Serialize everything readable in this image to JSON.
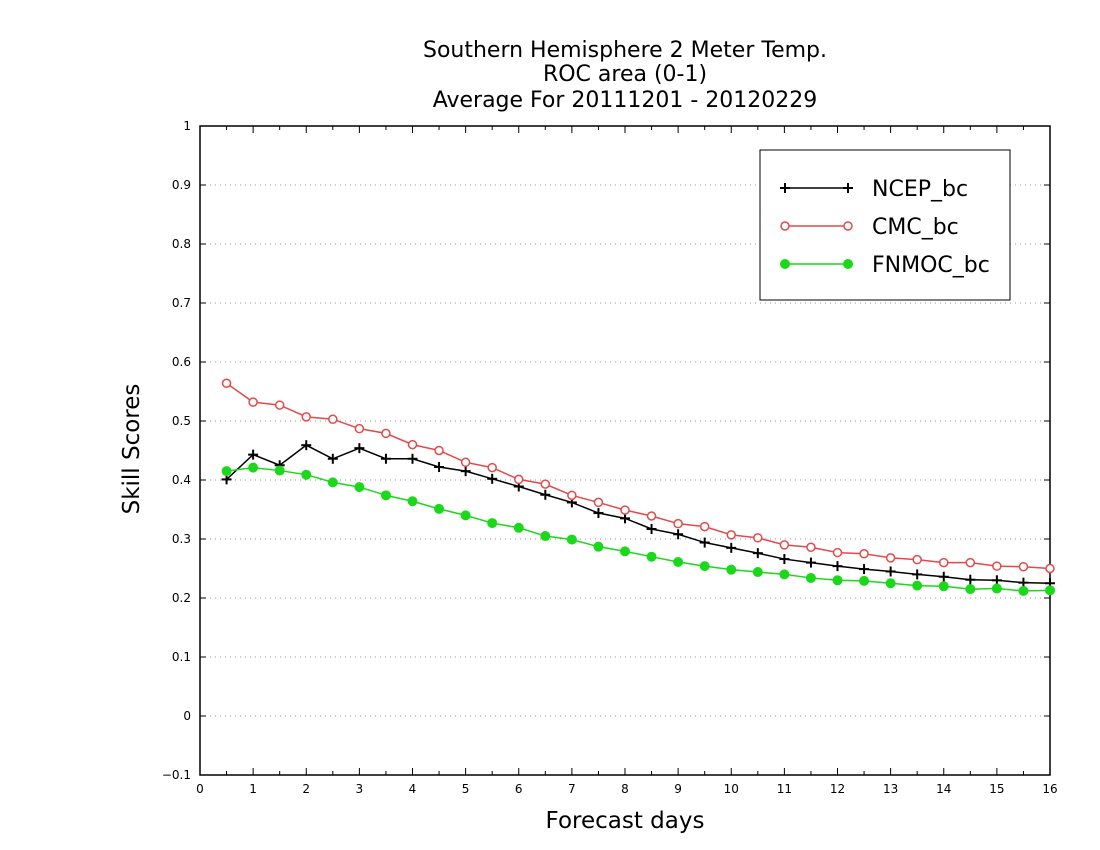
{
  "chart_data": {
    "type": "line",
    "title": [
      "Southern Hemisphere 2 Meter Temp.",
      "ROC area (0-1)",
      "Average For 20111201 - 20120229"
    ],
    "xlabel": "Forecast days",
    "ylabel": "Skill Scores",
    "xlim": [
      0,
      16
    ],
    "ylim": [
      -0.1,
      1
    ],
    "xticks": [
      0,
      1,
      2,
      3,
      4,
      5,
      6,
      7,
      8,
      9,
      10,
      11,
      12,
      13,
      14,
      15,
      16
    ],
    "yticks": [
      -0.1,
      0,
      0.1,
      0.2,
      0.3,
      0.4,
      0.5,
      0.6,
      0.7,
      0.8,
      0.9,
      1
    ],
    "xtick_labels": [
      "0",
      "1",
      "2",
      "3",
      "4",
      "5",
      "6",
      "7",
      "8",
      "9",
      "10",
      "11",
      "12",
      "13",
      "14",
      "15",
      "16"
    ],
    "ytick_labels": [
      "−0.1",
      "0",
      "0.1",
      "0.2",
      "0.3",
      "0.4",
      "0.5",
      "0.6",
      "0.7",
      "0.8",
      "0.9",
      "1"
    ],
    "grid": "horizontal-dotted",
    "legend_position": "top-right",
    "x": [
      0.5,
      1,
      1.5,
      2,
      2.5,
      3,
      3.5,
      4,
      4.5,
      5,
      5.5,
      6,
      6.5,
      7,
      7.5,
      8,
      8.5,
      9,
      9.5,
      10,
      10.5,
      11,
      11.5,
      12,
      12.5,
      13,
      13.5,
      14,
      14.5,
      15,
      15.5,
      16
    ],
    "series": [
      {
        "name": "NCEP_bc",
        "color": "#000000",
        "marker": "plus",
        "values": [
          0.401,
          0.443,
          0.425,
          0.459,
          0.436,
          0.454,
          0.436,
          0.436,
          0.422,
          0.415,
          0.402,
          0.389,
          0.375,
          0.362,
          0.344,
          0.335,
          0.317,
          0.308,
          0.294,
          0.285,
          0.276,
          0.266,
          0.26,
          0.254,
          0.249,
          0.245,
          0.24,
          0.236,
          0.231,
          0.23,
          0.226,
          0.225
        ]
      },
      {
        "name": "CMC_bc",
        "color": "#e24a4a",
        "marker": "open-circle",
        "values": [
          0.564,
          0.532,
          0.527,
          0.507,
          0.503,
          0.487,
          0.479,
          0.46,
          0.45,
          0.43,
          0.421,
          0.401,
          0.393,
          0.374,
          0.362,
          0.349,
          0.339,
          0.326,
          0.321,
          0.307,
          0.302,
          0.29,
          0.286,
          0.277,
          0.275,
          0.268,
          0.265,
          0.26,
          0.26,
          0.254,
          0.253,
          0.25
        ]
      },
      {
        "name": "FNMOC_bc",
        "color": "#1bd81b",
        "marker": "filled-circle",
        "values": [
          0.415,
          0.421,
          0.416,
          0.409,
          0.396,
          0.388,
          0.374,
          0.364,
          0.351,
          0.34,
          0.327,
          0.319,
          0.305,
          0.299,
          0.287,
          0.279,
          0.27,
          0.261,
          0.254,
          0.248,
          0.244,
          0.24,
          0.234,
          0.23,
          0.229,
          0.225,
          0.221,
          0.22,
          0.215,
          0.216,
          0.212,
          0.213
        ]
      }
    ]
  }
}
